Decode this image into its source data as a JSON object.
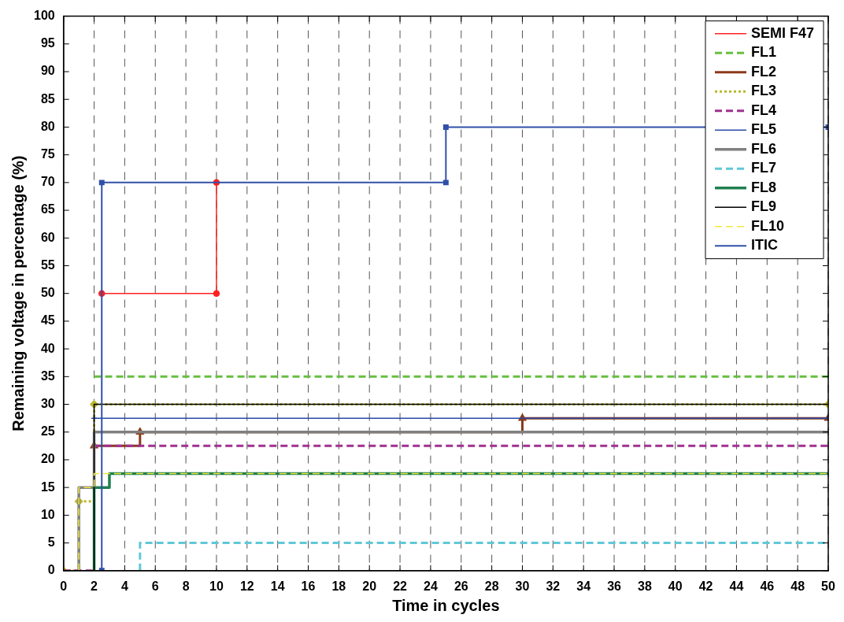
{
  "chart_data": {
    "type": "step",
    "xlabel": "Time in cycles",
    "ylabel": "Remaining voltage in percentage (%)",
    "xlim": [
      0,
      50
    ],
    "xticks": [
      0,
      2,
      4,
      6,
      8,
      10,
      12,
      14,
      16,
      18,
      20,
      22,
      24,
      26,
      28,
      30,
      32,
      34,
      36,
      38,
      40,
      42,
      44,
      46,
      48,
      50
    ],
    "ylim": [
      0,
      100
    ],
    "yticks": [
      0,
      5,
      10,
      15,
      20,
      25,
      30,
      35,
      40,
      45,
      50,
      55,
      60,
      65,
      70,
      75,
      80,
      85,
      90,
      95,
      100
    ],
    "grid": "x",
    "legend": "top right",
    "series": [
      {
        "name": "SEMI F47",
        "color": "#ff2020",
        "marker": "circle",
        "line_style": "solid",
        "x": [
          2.5,
          10,
          10
        ],
        "values": [
          50,
          50,
          70
        ]
      },
      {
        "name": "FL1",
        "color": "#66c040",
        "marker": "none",
        "line_style": "dashed",
        "x": [
          2,
          50
        ],
        "values": [
          35,
          35
        ]
      },
      {
        "name": "FL2",
        "color": "#8b3a1a",
        "marker": "triangle",
        "line_style": "solid",
        "x": [
          2,
          5,
          30,
          50
        ],
        "values": [
          22.5,
          25,
          27.5,
          27.5
        ]
      },
      {
        "name": "FL3",
        "color": "#b8b830",
        "marker": "diamond",
        "line_style": "dotted",
        "x": [
          0,
          1,
          2,
          50
        ],
        "values": [
          0,
          12.5,
          30,
          30
        ]
      },
      {
        "name": "FL4",
        "color": "#a03090",
        "marker": "none",
        "line_style": "dashed",
        "x": [
          0,
          2,
          50
        ],
        "values": [
          0,
          22.5,
          22.5
        ]
      },
      {
        "name": "FL5",
        "color": "#2a4aa8",
        "marker": "cross",
        "line_style": "solid",
        "x": [
          2,
          50
        ],
        "values": [
          27.5,
          27.5
        ]
      },
      {
        "name": "FL6",
        "color": "#808080",
        "marker": "none",
        "line_style": "solid",
        "x": [
          1,
          1,
          2,
          50
        ],
        "values": [
          0,
          15,
          25,
          25
        ]
      },
      {
        "name": "FL7",
        "color": "#60c8d8",
        "marker": "none",
        "line_style": "dashed",
        "x": [
          5,
          5,
          50
        ],
        "values": [
          0,
          5,
          5
        ]
      },
      {
        "name": "FL8",
        "color": "#208050",
        "marker": "none",
        "line_style": "solid",
        "x": [
          2,
          2,
          3,
          50
        ],
        "values": [
          0,
          15,
          17.5,
          17.5
        ]
      },
      {
        "name": "FL9",
        "color": "#000000",
        "marker": "none",
        "line_style": "solid",
        "x": [
          2,
          2,
          50
        ],
        "values": [
          0,
          30,
          30
        ]
      },
      {
        "name": "FL10",
        "color": "#f0e840",
        "marker": "none",
        "line_style": "dashed",
        "x": [
          1,
          1,
          2,
          50
        ],
        "values": [
          0,
          15,
          17.5,
          17.5
        ]
      },
      {
        "name": "ITIC",
        "color": "#3050a8",
        "marker": "square",
        "line_style": "solid",
        "x": [
          2.5,
          2.5,
          25,
          25,
          50
        ],
        "values": [
          0,
          70,
          70,
          80,
          80
        ]
      }
    ]
  }
}
